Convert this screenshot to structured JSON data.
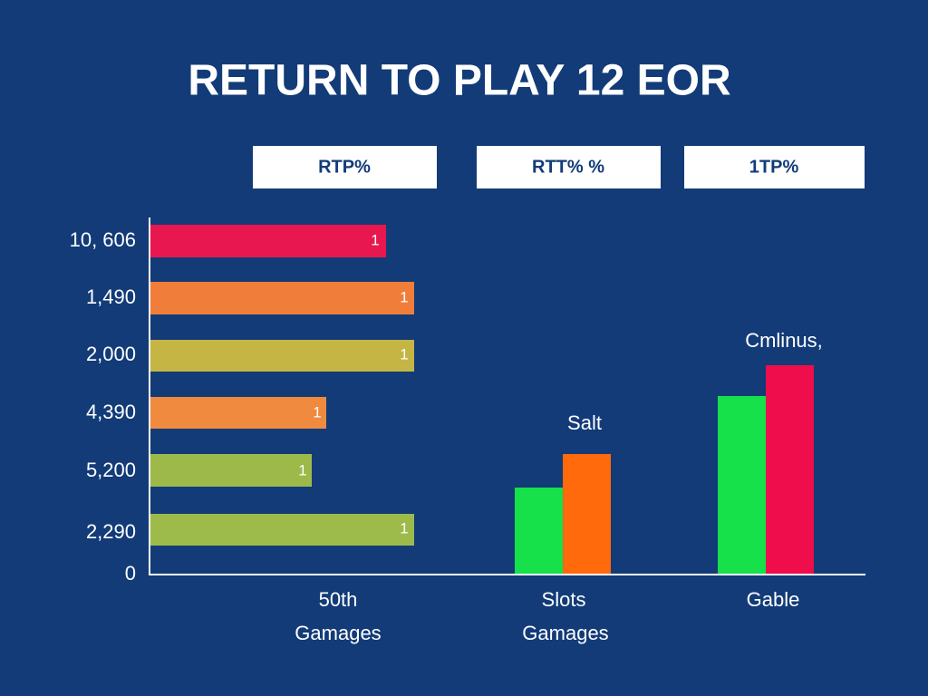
{
  "header": {
    "title": "RETURN TO PLAY 12 EOR"
  },
  "columns": [
    "RTP%",
    "RTT% %",
    "1TP%"
  ],
  "rows": {
    "labels": [
      "10, 606",
      "1,490",
      "2,000",
      "4,390",
      "5,200",
      "2,290"
    ],
    "bar_labels": [
      "1",
      "1",
      "1",
      "1",
      "1",
      "1"
    ]
  },
  "axis_zero": "0",
  "annotations": [
    "Salt",
    "Cmlinus,"
  ],
  "groups": [
    [
      "50th",
      "Gamages"
    ],
    [
      "Slots",
      "Gamages"
    ],
    [
      "Gable"
    ]
  ]
}
